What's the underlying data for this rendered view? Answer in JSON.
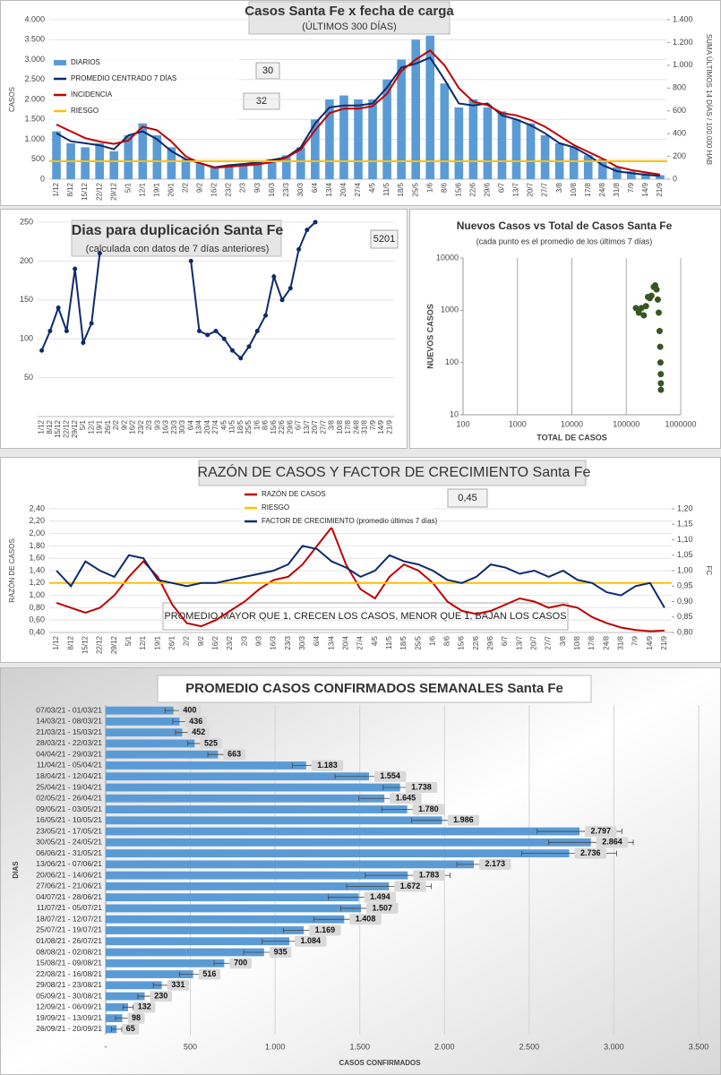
{
  "chart_data": [
    {
      "type": "bar",
      "title": "Casos Santa Fe x fecha de carga",
      "subtitle": "(ÚLTIMOS 300 DÍAS)",
      "ylabel": "CASOS",
      "y2label": "SUMA ÚLTIMOS 14 DÍAS / 100.000 HAB",
      "categories": [
        "1/12",
        "8/12",
        "15/12",
        "22/12",
        "29/12",
        "5/1",
        "12/1",
        "19/1",
        "26/1",
        "2/2",
        "9/2",
        "16/2",
        "23/2",
        "2/3",
        "9/3",
        "16/3",
        "23/3",
        "30/3",
        "6/4",
        "13/4",
        "20/4",
        "27/4",
        "4/5",
        "11/5",
        "18/5",
        "25/5",
        "1/6",
        "8/6",
        "15/6",
        "22/6",
        "29/6",
        "6/7",
        "13/7",
        "20/7",
        "27/7",
        "3/8",
        "10/8",
        "17/8",
        "24/8",
        "31/8",
        "7/9",
        "14/9",
        "21/9"
      ],
      "series": [
        {
          "name": "DIARIOS",
          "type": "bar",
          "color": "#5b9bd5",
          "values": [
            1200,
            900,
            800,
            900,
            700,
            1100,
            1400,
            1100,
            800,
            500,
            400,
            300,
            350,
            400,
            450,
            500,
            600,
            800,
            1500,
            2000,
            2100,
            2000,
            2000,
            2500,
            3000,
            3500,
            3600,
            2400,
            1800,
            2000,
            1800,
            1700,
            1500,
            1400,
            1100,
            900,
            800,
            600,
            500,
            300,
            200,
            150,
            100
          ]
        },
        {
          "name": "PROMEDIO CENTRADO 7 DÍAS",
          "type": "line",
          "color": "#0d2b6b",
          "values": [
            1150,
            950,
            900,
            850,
            750,
            1100,
            1200,
            1000,
            700,
            500,
            400,
            300,
            350,
            380,
            420,
            480,
            550,
            800,
            1400,
            1800,
            1850,
            1850,
            1900,
            2300,
            2800,
            2900,
            3050,
            2500,
            1900,
            1850,
            1900,
            1600,
            1500,
            1350,
            1150,
            900,
            800,
            600,
            350,
            200,
            150,
            110,
            80
          ]
        },
        {
          "name": "INCIDENCIA",
          "type": "line",
          "axis": "y2",
          "color": "#c00000",
          "values": [
            480,
            420,
            360,
            330,
            310,
            340,
            460,
            430,
            330,
            200,
            140,
            100,
            110,
            120,
            130,
            150,
            190,
            260,
            430,
            580,
            620,
            620,
            640,
            750,
            950,
            1050,
            1130,
            1000,
            800,
            680,
            650,
            580,
            560,
            520,
            460,
            380,
            300,
            240,
            180,
            110,
            80,
            60,
            40
          ]
        },
        {
          "name": "RIESGO",
          "type": "hline",
          "color": "#ffc000",
          "value": 450
        }
      ],
      "ylim": [
        0,
        4000
      ],
      "yticks": [
        0,
        500,
        {
          "value": 1000,
          "label": "1.000"
        },
        {
          "value": 1500,
          "label": "1.500"
        },
        {
          "value": 2000,
          "label": "2.000"
        },
        {
          "value": 2500,
          "label": "2.500"
        },
        {
          "value": 3000,
          "label": "3.000"
        },
        {
          "value": 3500,
          "label": "3.500"
        },
        {
          "value": 4000,
          "label": "4.000"
        }
      ],
      "y2lim": [
        0,
        1400
      ],
      "y2ticks": [
        0,
        200,
        400,
        600,
        800,
        {
          "value": 1000,
          "label": "1.000"
        },
        {
          "value": 1200,
          "label": "1.200"
        },
        {
          "value": 1400,
          "label": "1.400"
        }
      ],
      "legend": "upper left",
      "annotations": [
        "30",
        "32"
      ]
    },
    {
      "type": "line",
      "title": "Dias para duplicación Santa Fe",
      "subtitle": "(calculada con datos de 7 días anteriores)",
      "categories": [
        "1/12",
        "8/12",
        "15/12",
        "22/12",
        "29/12",
        "5/1",
        "12/1",
        "19/1",
        "26/1",
        "2/2",
        "9/2",
        "16/2",
        "23/2",
        "2/3",
        "9/3",
        "16/3",
        "23/3",
        "30/3",
        "6/4",
        "13/4",
        "20/4",
        "27/4",
        "4/5",
        "11/5",
        "18/5",
        "25/5",
        "1/6",
        "8/6",
        "15/6",
        "22/6",
        "29/6",
        "6/7",
        "13/7",
        "20/7",
        "27/7",
        "3/8",
        "10/8",
        "17/8",
        "24/8",
        "31/8",
        "7/9",
        "14/9",
        "21/9"
      ],
      "series": [
        {
          "type": "line",
          "color": "#0d2b6b",
          "values": [
            85,
            110,
            140,
            110,
            190,
            95,
            120,
            210,
            null,
            null,
            null,
            null,
            null,
            null,
            null,
            null,
            null,
            null,
            200,
            110,
            105,
            110,
            100,
            85,
            75,
            90,
            110,
            130,
            180,
            150,
            165,
            215,
            240,
            250,
            null,
            null,
            null,
            null,
            null,
            null,
            null,
            null,
            null
          ]
        }
      ],
      "ylim": [
        0,
        250
      ],
      "yticks": [
        50,
        100,
        150,
        200,
        250
      ],
      "annotations": [
        "5201"
      ]
    },
    {
      "type": "scatter",
      "title": "Nuevos Casos vs Total de Casos Santa Fe",
      "subtitle": "(cada punto es el promedio de los últimos 7 días)",
      "xlabel": "TOTAL DE CASOS",
      "ylabel": "NUEVOS CASOS",
      "log": true,
      "color": "#375623",
      "x": [
        150000,
        170000,
        190000,
        210000,
        230000,
        250000,
        270000,
        290000,
        320000,
        340000,
        360000,
        380000,
        395000,
        410000,
        420000,
        425000,
        430000,
        432000,
        433000
      ],
      "values": [
        1100,
        900,
        1100,
        800,
        1200,
        1800,
        1700,
        1900,
        2800,
        3000,
        2500,
        1600,
        900,
        400,
        200,
        100,
        60,
        40,
        30
      ],
      "xlim": [
        100,
        1000000
      ],
      "xticks": [
        100,
        1000,
        10000,
        100000,
        1000000
      ],
      "ylim": [
        10,
        10000
      ],
      "yticks": [
        10,
        100,
        1000,
        10000
      ]
    },
    {
      "type": "line",
      "title": "RAZÓN DE CASOS Y FACTOR DE CRECIMIENTO Santa Fe",
      "ylabel": "RAZÓN DE CASOS",
      "y2label": "FC",
      "categories": [
        "1/12",
        "8/12",
        "15/12",
        "22/12",
        "29/12",
        "5/1",
        "12/1",
        "19/1",
        "26/1",
        "2/2",
        "9/2",
        "16/2",
        "23/2",
        "2/3",
        "9/3",
        "16/3",
        "23/3",
        "30/3",
        "6/4",
        "13/4",
        "20/4",
        "27/4",
        "4/5",
        "11/5",
        "18/5",
        "25/5",
        "1/6",
        "8/6",
        "15/6",
        "22/6",
        "29/6",
        "6/7",
        "13/7",
        "20/7",
        "27/7",
        "3/8",
        "10/8",
        "17/8",
        "24/8",
        "31/8",
        "7/9",
        "14/9",
        "21/9"
      ],
      "series": [
        {
          "name": "RAZÓN DE CASOS",
          "type": "line",
          "color": "#c00000",
          "values": [
            0.88,
            0.8,
            0.72,
            0.8,
            1.0,
            1.3,
            1.55,
            1.3,
            0.85,
            0.55,
            0.5,
            0.6,
            0.75,
            0.9,
            1.1,
            1.25,
            1.3,
            1.5,
            1.8,
            2.1,
            1.5,
            1.1,
            0.95,
            1.3,
            1.5,
            1.4,
            1.2,
            0.9,
            0.75,
            0.7,
            0.75,
            0.85,
            0.95,
            0.9,
            0.8,
            0.85,
            0.8,
            0.65,
            0.55,
            0.48,
            0.44,
            0.42,
            0.43
          ]
        },
        {
          "name": "RIESGO",
          "type": "hline",
          "color": "#ffc000",
          "value": 1.2
        },
        {
          "name": "FACTOR DE CRECIMIENTO (promedio últimos 7 días)",
          "type": "line",
          "axis": "y2",
          "color": "#0d2b6b",
          "values": [
            1.0,
            0.95,
            1.03,
            1.0,
            0.98,
            1.05,
            1.04,
            0.97,
            0.96,
            0.95,
            0.96,
            0.96,
            0.97,
            0.98,
            0.99,
            1.0,
            1.02,
            1.08,
            1.07,
            1.03,
            1.01,
            0.98,
            1.0,
            1.05,
            1.03,
            1.02,
            1.0,
            0.97,
            0.96,
            0.98,
            1.02,
            1.01,
            0.99,
            1.0,
            0.98,
            1.0,
            0.97,
            0.96,
            0.93,
            0.92,
            0.95,
            0.96,
            0.88
          ]
        }
      ],
      "ylim": [
        0.4,
        2.4
      ],
      "yticks": [
        {
          "value": 0.4,
          "label": "0,40"
        },
        {
          "value": 0.6,
          "label": "0,60"
        },
        {
          "value": 0.8,
          "label": "0,80"
        },
        {
          "value": 1.0,
          "label": "1,00"
        },
        {
          "value": 1.2,
          "label": "1,20"
        },
        {
          "value": 1.4,
          "label": "1,40"
        },
        {
          "value": 1.6,
          "label": "1,60"
        },
        {
          "value": 1.8,
          "label": "1,80"
        },
        {
          "value": 2.0,
          "label": "2,00"
        },
        {
          "value": 2.2,
          "label": "2,20"
        },
        {
          "value": 2.4,
          "label": "2,40"
        }
      ],
      "y2lim": [
        0.8,
        1.2
      ],
      "y2ticks": [
        {
          "value": 0.8,
          "label": "0,80"
        },
        {
          "value": 0.85,
          "label": "0,85"
        },
        {
          "value": 0.9,
          "label": "0,90"
        },
        {
          "value": 0.95,
          "label": "0,95"
        },
        {
          "value": 1.0,
          "label": "1,00"
        },
        {
          "value": 1.05,
          "label": "1,05"
        },
        {
          "value": 1.1,
          "label": "1,10"
        },
        {
          "value": 1.15,
          "label": "1,15"
        },
        {
          "value": 1.2,
          "label": "1,20"
        }
      ],
      "legend": "upper center",
      "annotations": [
        "0,45",
        "PROMEDIO MAYOR QUE 1, CRECEN LOS CASOS, MENOR QUE 1, BAJAN LOS CASOS"
      ]
    },
    {
      "type": "bar",
      "orientation": "horizontal",
      "title": "PROMEDIO CASOS CONFIRMADOS SEMANALES Santa Fe",
      "xlabel": "CASOS CONFIRMADOS",
      "ylabel": "DIAS",
      "color": "#5b9bd5",
      "categories": [
        "07/03/21 - 01/03/21",
        "14/03/21 - 08/03/21",
        "21/03/21 - 15/03/21",
        "28/03/21 - 22/03/21",
        "04/04/21 - 29/03/21",
        "11/04/21 - 05/04/21",
        "18/04/21 - 12/04/21",
        "25/04/21 - 19/04/21",
        "02/05/21 - 26/04/21",
        "09/05/21 - 03/05/21",
        "16/05/21 - 10/05/21",
        "23/05/21 - 17/05/21",
        "30/05/21 - 24/05/21",
        "06/06/21 - 31/05/21",
        "13/06/21 - 07/06/21",
        "20/06/21 - 14/06/21",
        "27/06/21 - 21/06/21",
        "04/07/21 - 28/06/21",
        "11/07/21 - 05/07/21",
        "18/07/21 - 12/07/21",
        "25/07/21 - 19/07/21",
        "01/08/21 - 26/07/21",
        "08/08/21 - 02/08/21",
        "15/08/21 - 09/08/21",
        "22/08/21 - 16/08/21",
        "29/08/21 - 23/08/21",
        "05/09/21 - 30/08/21",
        "12/09/21 - 06/09/21",
        "19/09/21 - 13/09/21",
        "26/09/21 - 20/09/21"
      ],
      "values": [
        400,
        436,
        452,
        525,
        663,
        1183,
        1554,
        1738,
        1645,
        1780,
        1986,
        2797,
        2864,
        2736,
        2173,
        1783,
        1672,
        1494,
        1507,
        1408,
        1169,
        1084,
        935,
        700,
        516,
        331,
        230,
        132,
        98,
        65
      ],
      "value_labels": [
        "400",
        "436",
        "452",
        "525",
        "663",
        "1.183",
        "1.554",
        "1.738",
        "1.645",
        "1.780",
        "1.986",
        "2.797",
        "2.864",
        "2.736",
        "2.173",
        "1.783",
        "1.672",
        "1.494",
        "1.507",
        "1.408",
        "1.169",
        "1.084",
        "935",
        "700",
        "516",
        "331",
        "230",
        "132",
        "98",
        "65"
      ],
      "errors": [
        50,
        40,
        40,
        40,
        60,
        80,
        200,
        100,
        150,
        150,
        180,
        250,
        250,
        280,
        100,
        250,
        250,
        180,
        120,
        180,
        120,
        160,
        120,
        60,
        80,
        50,
        40,
        30,
        40,
        30
      ],
      "xlim": [
        0,
        3500
      ],
      "xticks": [
        {
          "value": 0,
          "label": "-"
        },
        500,
        {
          "value": 1000,
          "label": "1.000"
        },
        {
          "value": 1500,
          "label": "1.500"
        },
        {
          "value": 2000,
          "label": "2.000"
        },
        {
          "value": 2500,
          "label": "2.500"
        },
        {
          "value": 3000,
          "label": "3.000"
        },
        {
          "value": 3500,
          "label": "3.500"
        }
      ],
      "grid": true
    }
  ]
}
